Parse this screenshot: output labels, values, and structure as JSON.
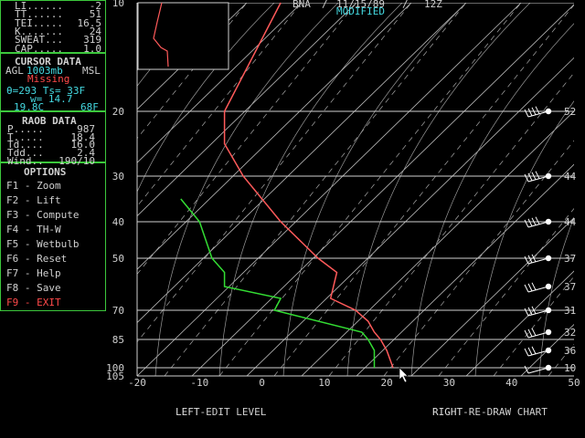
{
  "indices": {
    "rows": [
      {
        "label": "LI......",
        "value": "-2"
      },
      {
        "label": "TT......",
        "value": "51"
      },
      {
        "label": "TEI.....",
        "value": "16.5"
      },
      {
        "label": "K.......",
        "value": "24"
      },
      {
        "label": "SWEAT...",
        "value": "319"
      },
      {
        "label": "CAP.....",
        "value": "1.0"
      }
    ]
  },
  "cursor": {
    "title": "CURSOR DATA",
    "agl_prefix": "AGL",
    "level": "1003mb",
    "msl_suffix": "MSL",
    "status": "Missing",
    "line1": "θ=293 Ts= 33F",
    "line2": "w= 14.7",
    "line3a": "19.8C",
    "line3b": "68F"
  },
  "raob": {
    "title": "RAOB DATA",
    "rows": [
      {
        "label": "P.....",
        "value": "987"
      },
      {
        "label": "T.....",
        "value": "18.4"
      },
      {
        "label": "Td....",
        "value": "16.0"
      },
      {
        "label": "Tdd...",
        "value": "2.4"
      },
      {
        "label": "Wind..",
        "value": "190/10"
      }
    ]
  },
  "options": {
    "title": "OPTIONS",
    "items": [
      {
        "key": "F1",
        "label": "Zoom"
      },
      {
        "key": "F2",
        "label": "Lift"
      },
      {
        "key": "F3",
        "label": "Compute"
      },
      {
        "key": "F4",
        "label": "TH-W"
      },
      {
        "key": "F5",
        "label": "Wetbulb"
      },
      {
        "key": "F6",
        "label": "Reset"
      },
      {
        "key": "F7",
        "label": "Help"
      },
      {
        "key": "F8",
        "label": "Save"
      },
      {
        "key": "F9",
        "label": "EXIT"
      }
    ],
    "separator": " - "
  },
  "header": {
    "station": "BNA",
    "sep1": "/",
    "date": "11/15/89",
    "sep2": "/",
    "time": "12Z",
    "modified": "MODIFIED"
  },
  "footer": {
    "left_key": "LEFT",
    "left_text": "-EDIT LEVEL",
    "right_key": "RIGHT",
    "right_text": "-RE-DRAW CHART"
  },
  "colors": {
    "temperature": "#ff5a5a",
    "dewpoint": "#33dd33",
    "panel_border": "#3cc83c",
    "accent_cyan": "#44d8e0",
    "exit_red": "#ff4a4a",
    "grid": "#bdbdbd"
  },
  "chart_data": {
    "type": "line",
    "title": "",
    "xlabel": "",
    "ylabel": "",
    "x_ticks": [
      "-20",
      "-10",
      "0",
      "10",
      "20",
      "30",
      "40",
      "50"
    ],
    "y_ticks": [
      "10",
      "20",
      "30",
      "40",
      "50",
      "70",
      "85",
      "100",
      "105"
    ],
    "y_pressure_values": [
      10,
      20,
      30,
      40,
      50,
      70,
      85,
      100,
      105
    ],
    "series": [
      {
        "kind": "temperature",
        "points": [
          [
            3,
            10
          ],
          [
            -6,
            20
          ],
          [
            -6,
            25
          ],
          [
            -3,
            30
          ],
          [
            3,
            40
          ],
          [
            9,
            50
          ],
          [
            12,
            55
          ],
          [
            11,
            65
          ],
          [
            15,
            70
          ],
          [
            17,
            75
          ],
          [
            18,
            80
          ],
          [
            19,
            85
          ],
          [
            20,
            90
          ],
          [
            21,
            100
          ]
        ]
      },
      {
        "kind": "dewpoint",
        "points": [
          [
            -13,
            35
          ],
          [
            -10,
            40
          ],
          [
            -8,
            50
          ],
          [
            -6,
            55
          ],
          [
            -6,
            60
          ],
          [
            3,
            65
          ],
          [
            2,
            70
          ],
          [
            16,
            80
          ],
          [
            17,
            85
          ],
          [
            18,
            90
          ],
          [
            18,
            100
          ]
        ]
      }
    ],
    "wind_levels": [
      {
        "p": 20,
        "label": "52"
      },
      {
        "p": 30,
        "label": "44"
      },
      {
        "p": 40,
        "label": "44"
      },
      {
        "p": 50,
        "label": "37"
      },
      {
        "p": 60,
        "label": "37"
      },
      {
        "p": 70,
        "label": "31"
      },
      {
        "p": 80,
        "label": "32"
      },
      {
        "p": 90,
        "label": "36"
      },
      {
        "p": 100,
        "label": "10"
      }
    ]
  }
}
